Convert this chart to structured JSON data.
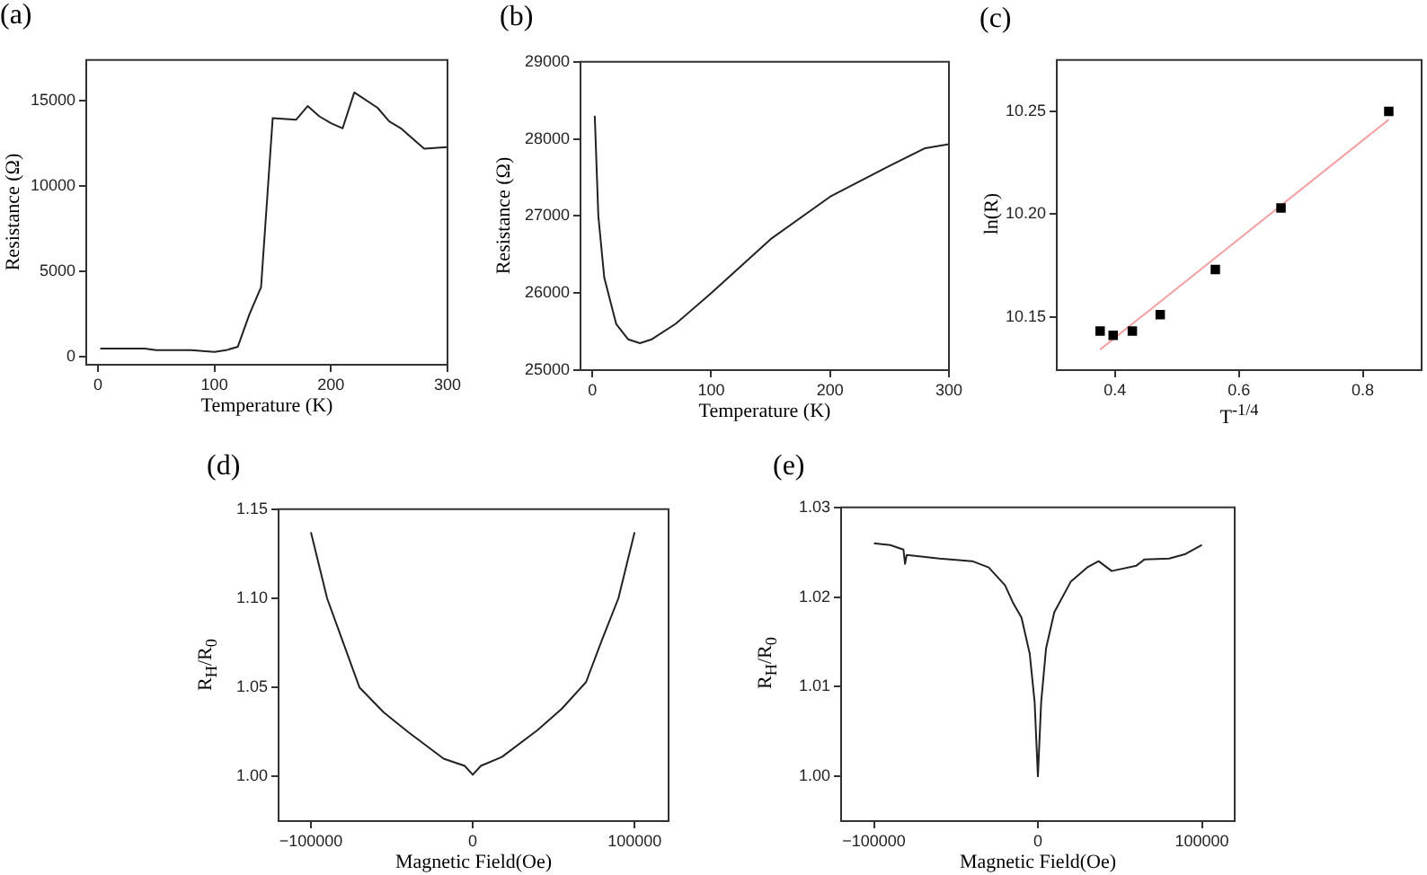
{
  "chart_data": [
    {
      "type": "line",
      "title": "(a)",
      "xlabel": "Temperature (K)",
      "ylabel": "Resistance (Ω)",
      "xlim": [
        -10,
        300
      ],
      "ylim": [
        -450,
        17400
      ],
      "xticks": [
        0,
        100,
        200,
        300
      ],
      "yticks": [
        0,
        5000,
        10000,
        15000
      ],
      "marker": "none",
      "series": [
        {
          "color": "#222222",
          "x": [
            2,
            40,
            50,
            80,
            100,
            110,
            120,
            130,
            140,
            150,
            170,
            180,
            190,
            200,
            210,
            220,
            240,
            250,
            260,
            270,
            280,
            300
          ],
          "values": [
            500,
            500,
            400,
            400,
            300,
            400,
            600,
            2500,
            4100,
            14000,
            13900,
            14700,
            14100,
            13700,
            13400,
            15500,
            14600,
            13800,
            13400,
            12800,
            12200,
            12300
          ]
        }
      ]
    },
    {
      "type": "line",
      "title": "(b)",
      "xlabel": "Temperature (K)",
      "ylabel": "Resistance (Ω)",
      "xlim": [
        -10,
        300
      ],
      "ylim": [
        25000,
        29000
      ],
      "xticks": [
        0,
        100,
        200,
        300
      ],
      "yticks": [
        25000,
        26000,
        27000,
        28000,
        29000
      ],
      "marker": "none",
      "series": [
        {
          "color": "#222222",
          "x": [
            2,
            5,
            10,
            20,
            30,
            40,
            50,
            70,
            100,
            150,
            200,
            250,
            280,
            300
          ],
          "values": [
            28300,
            27000,
            26200,
            25600,
            25400,
            25350,
            25400,
            25600,
            26000,
            26700,
            27250,
            27650,
            27880,
            27930
          ]
        }
      ]
    },
    {
      "type": "scatter",
      "title": "(c)",
      "xlabel": "T$^{-1/4}$",
      "ylabel": "ln(R)",
      "xlim": [
        0.306,
        0.895
      ],
      "ylim": [
        10.124,
        10.275
      ],
      "xticks": [
        0.4,
        0.6,
        0.8
      ],
      "yticks": [
        10.15,
        {
          "value": 10.2,
          "label": "10.20"
        },
        10.25
      ],
      "marker": "square",
      "series": [
        {
          "color": "#000000",
          "x": [
            0.376,
            0.397,
            0.428,
            0.473,
            0.562,
            0.668,
            0.842
          ],
          "values": [
            10.143,
            10.141,
            10.143,
            10.151,
            10.173,
            10.203,
            10.25
          ]
        },
        {
          "type": "line",
          "marker": "none",
          "color": "#f4a0a0",
          "x": [
            0.376,
            0.842
          ],
          "values": [
            10.134,
            10.246
          ]
        }
      ]
    },
    {
      "type": "line",
      "title": "(d)",
      "xlabel": "Magnetic Field(Oe)",
      "ylabel": "R$_{H}$/R$_{0}$",
      "xlim": [
        -120000,
        121000
      ],
      "ylim": [
        0.975,
        1.15
      ],
      "xticks": [
        {
          "value": -100000,
          "label": "−100000"
        },
        0,
        100000
      ],
      "yticks": [
        {
          "value": 1,
          "label": "1.00"
        },
        1.05,
        {
          "value": 1.1,
          "label": "1.10"
        },
        1.15
      ],
      "marker": "none",
      "series": [
        {
          "color": "#222222",
          "x": [
            -100000,
            -90000,
            -80000,
            -70000,
            -55000,
            -40000,
            -18000,
            -5000,
            0,
            5000,
            18000,
            40000,
            55000,
            70000,
            80000,
            90000,
            100000
          ],
          "values": [
            1.137,
            1.1,
            1.075,
            1.05,
            1.036,
            1.025,
            1.01,
            1.006,
            1.001,
            1.006,
            1.011,
            1.026,
            1.038,
            1.053,
            1.077,
            1.1,
            1.137
          ]
        }
      ]
    },
    {
      "type": "line",
      "title": "(e)",
      "xlabel": "Magnetic Field(Oe)",
      "ylabel": "R$_{H}$/R$_{0}$",
      "xlim": [
        -120000,
        120000
      ],
      "ylim": [
        0.995,
        1.03
      ],
      "xticks": [
        {
          "value": -100000,
          "label": "−100000"
        },
        0,
        100000
      ],
      "yticks": [
        {
          "value": 1,
          "label": "1.00"
        },
        1.01,
        1.02,
        1.03
      ],
      "marker": "none",
      "series": [
        {
          "color": "#222222",
          "x": [
            -100000,
            -90000,
            -82000,
            -81000,
            -80000,
            -60000,
            -40000,
            -30000,
            -20000,
            -15000,
            -10000,
            -5000,
            -2000,
            0,
            2000,
            5000,
            10000,
            20000,
            30000,
            37000,
            45000,
            60000,
            65000,
            80000,
            90000,
            100000
          ],
          "values": [
            1.026,
            1.0258,
            1.0253,
            1.0237,
            1.0247,
            1.0243,
            1.024,
            1.0233,
            1.0213,
            1.0193,
            1.0177,
            1.0137,
            1.0083,
            1.0,
            1.0083,
            1.0143,
            1.0183,
            1.0217,
            1.0233,
            1.024,
            1.0229,
            1.0235,
            1.0242,
            1.0243,
            1.0248,
            1.0258
          ]
        }
      ]
    }
  ]
}
